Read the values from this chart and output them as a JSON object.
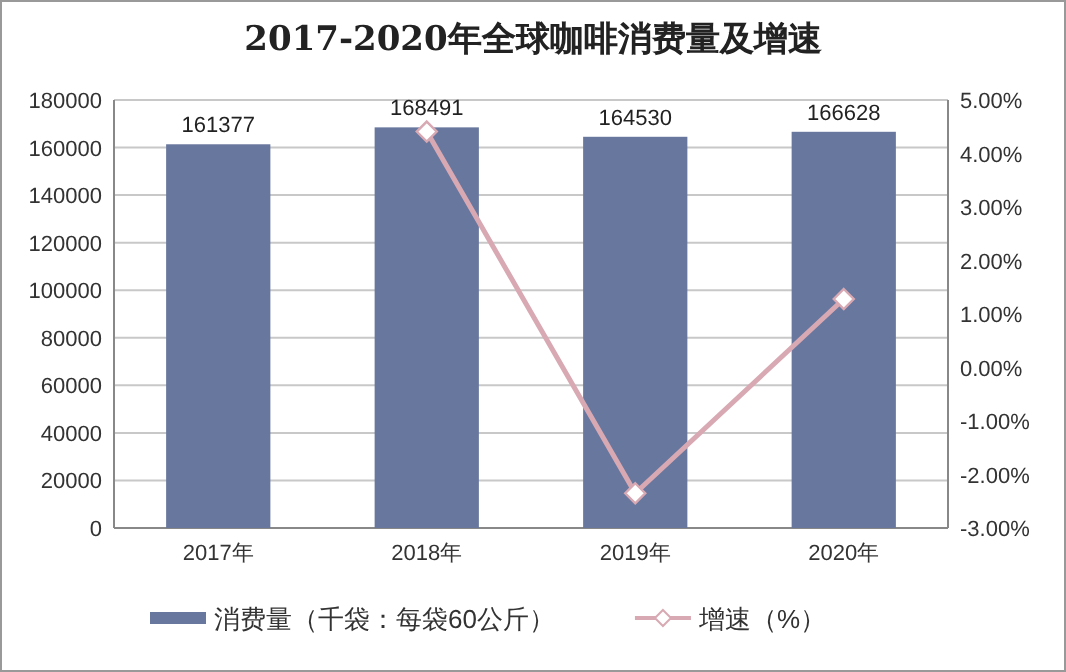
{
  "chart_data": {
    "type": "bar",
    "title": "2017-2020年全球咖啡消费量及增速",
    "categories": [
      "2017年",
      "2018年",
      "2019年",
      "2020年"
    ],
    "ylim": [
      0,
      180000
    ],
    "yticks": [
      0,
      20000,
      40000,
      60000,
      80000,
      100000,
      120000,
      140000,
      160000,
      180000
    ],
    "y2lim": [
      -3,
      5
    ],
    "y2ticks": [
      {
        "value": -3,
        "label": "-3.00%"
      },
      {
        "value": -2,
        "label": "-2.00%"
      },
      {
        "value": -1,
        "label": "-1.00%"
      },
      {
        "value": 0,
        "label": "0.00%"
      },
      {
        "value": 1,
        "label": "1.00%"
      },
      {
        "value": 2,
        "label": "2.00%"
      },
      {
        "value": 3,
        "label": "3.00%"
      },
      {
        "value": 4,
        "label": "4.00%"
      },
      {
        "value": 5,
        "label": "5.00%"
      }
    ],
    "grid": "y",
    "legend": "bottom",
    "series": [
      {
        "name": "消费量（千袋：每袋60公斤）",
        "color": "#68779e",
        "values": [
          161377,
          168491,
          164530,
          166628
        ],
        "value_labels": [
          "161377",
          "168491",
          "164530",
          "166628"
        ]
      },
      {
        "name": "增速（%）",
        "type": "line",
        "axis": "y2",
        "color": "#d8a9b3",
        "marker": "diamond",
        "values": [
          null,
          4.41,
          -2.35,
          1.28
        ]
      }
    ]
  }
}
